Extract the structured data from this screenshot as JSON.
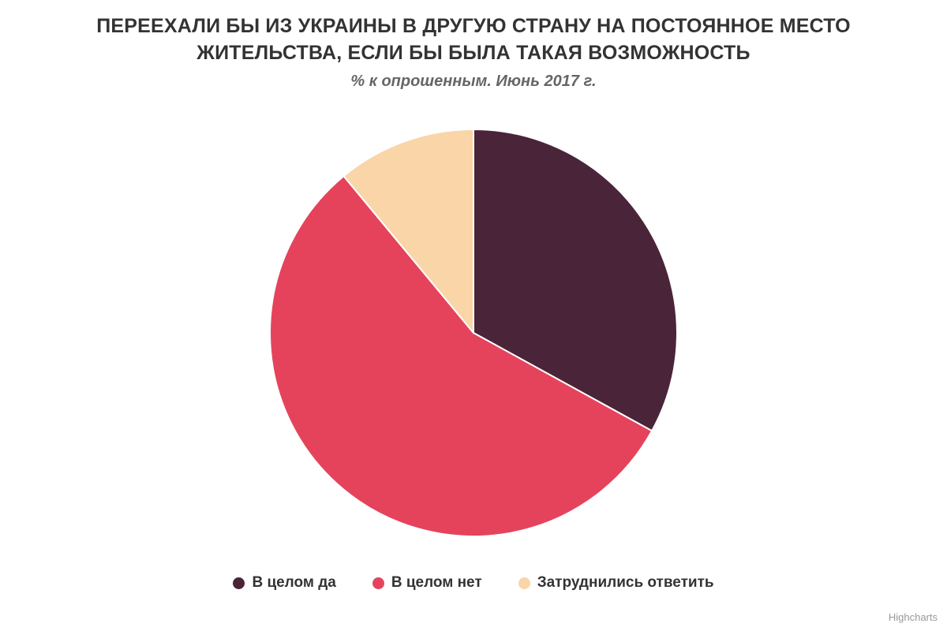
{
  "chart_data": {
    "type": "pie",
    "title": "ПЕРЕЕХАЛИ БЫ ИЗ УКРАИНЫ В ДРУГУЮ СТРАНУ НА ПОСТОЯННОЕ МЕСТО ЖИТЕЛЬСТВА, ЕСЛИ БЫ БЫЛА ТАКАЯ ВОЗМОЖНОСТЬ",
    "subtitle": "% к опрошенным. Июнь 2017 г.",
    "start_angle_deg": 0,
    "direction": "clockwise",
    "legend_position": "bottom",
    "border_color": "#ffffff",
    "slices": [
      {
        "label": "В целом да",
        "value": 33,
        "color": "#4A2439"
      },
      {
        "label": "В целом нет",
        "value": 56,
        "color": "#E5435C"
      },
      {
        "label": "Затруднились ответить",
        "value": 11,
        "color": "#F9D5A8"
      }
    ]
  },
  "credits": {
    "label": "Highcharts"
  }
}
